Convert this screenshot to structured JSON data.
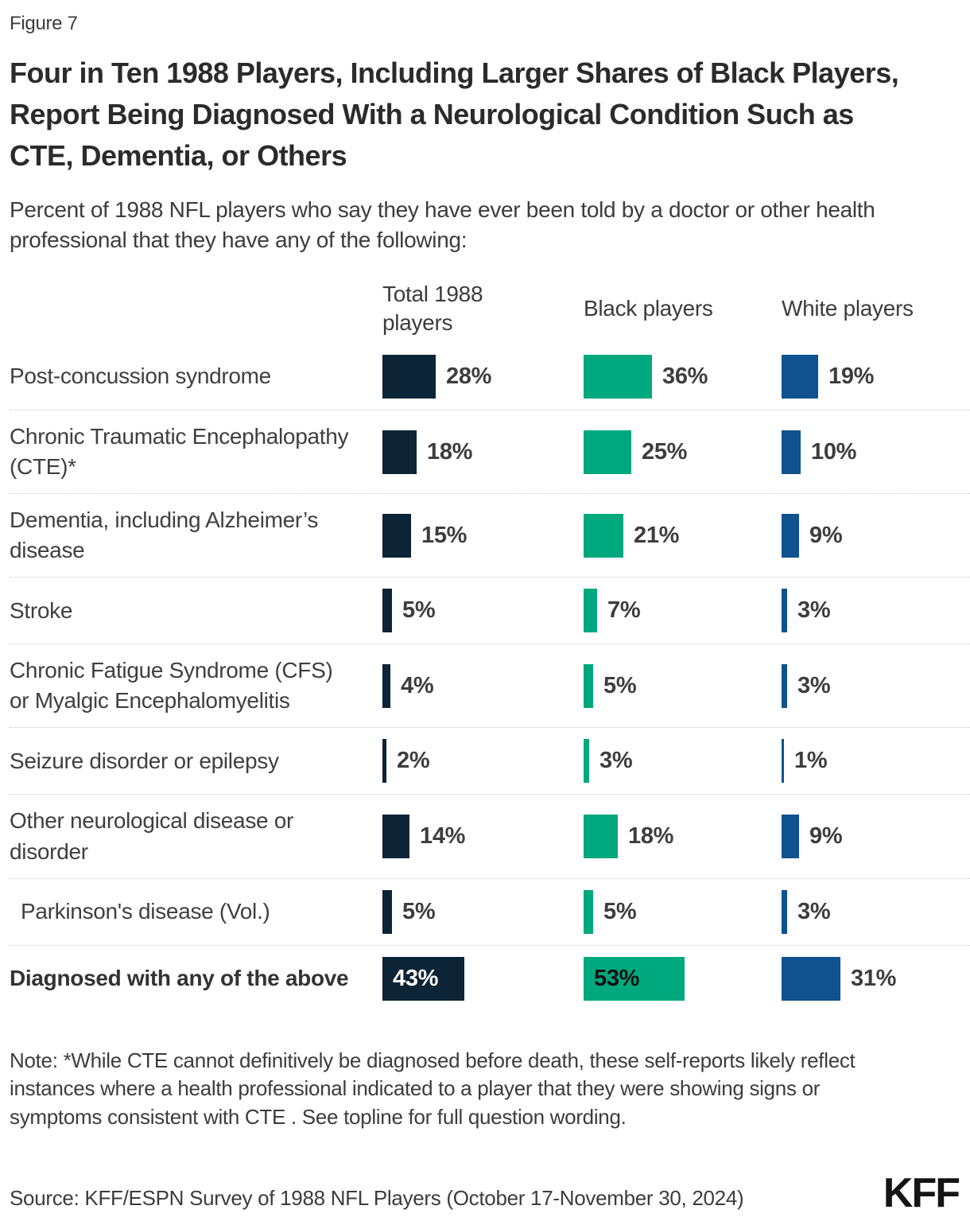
{
  "figure_label": "Figure 7",
  "title": "Four in Ten 1988 Players, Including Larger Shares of Black Players, Report Being Diagnosed With a Neurological Condition Such as CTE, Dementia, or Others",
  "subtitle": "Percent of 1988 NFL players who say they have ever been told by a doctor or other health professional that they have any of the following:",
  "columns": {
    "total": "Total 1988 players",
    "black": "Black players",
    "white": "White players"
  },
  "colors": {
    "total": "#0d2436",
    "black_players": "#00a87e",
    "white_players": "#0f528f"
  },
  "rows": [
    {
      "label": "Post-concussion syndrome",
      "total": 28,
      "black": 36,
      "white": 19,
      "total_label": "28%",
      "black_label": "36%",
      "white_label": "19%"
    },
    {
      "label": "Chronic Traumatic Encephalopathy (CTE)*",
      "total": 18,
      "black": 25,
      "white": 10,
      "total_label": "18%",
      "black_label": "25%",
      "white_label": "10%"
    },
    {
      "label": "Dementia, including Alzheimer’s disease",
      "total": 15,
      "black": 21,
      "white": 9,
      "total_label": "15%",
      "black_label": "21%",
      "white_label": "9%"
    },
    {
      "label": "Stroke",
      "total": 5,
      "black": 7,
      "white": 3,
      "total_label": "5%",
      "black_label": "7%",
      "white_label": "3%"
    },
    {
      "label": "Chronic Fatigue Syndrome (CFS) or Myalgic Encephalomyelitis",
      "total": 4,
      "black": 5,
      "white": 3,
      "total_label": "4%",
      "black_label": "5%",
      "white_label": "3%"
    },
    {
      "label": "Seizure disorder or epilepsy",
      "total": 2,
      "black": 3,
      "white": 1,
      "total_label": "2%",
      "black_label": "3%",
      "white_label": "1%"
    },
    {
      "label": "Other neurological disease or disorder",
      "total": 14,
      "black": 18,
      "white": 9,
      "total_label": "14%",
      "black_label": "18%",
      "white_label": "9%"
    },
    {
      "label": "Parkinson's disease (Vol.)",
      "total": 5,
      "black": 5,
      "white": 3,
      "total_label": "5%",
      "black_label": "5%",
      "white_label": "3%"
    },
    {
      "label": "Diagnosed with any of the above",
      "total": 43,
      "black": 53,
      "white": 31,
      "total_label": "43%",
      "black_label": "53%",
      "white_label": "31%"
    }
  ],
  "note": "Note: *While CTE cannot definitively be diagnosed before death, these self-reports likely reflect instances where a health professional indicated to a player that they were showing signs or symptoms consistent with CTE . See topline for full question wording.",
  "source": "Source: KFF/ESPN Survey of 1988 NFL Players (October 17-November 30, 2024)",
  "logo": "KFF",
  "chart_data": {
    "type": "bar",
    "orientation": "horizontal",
    "title": "Four in Ten 1988 Players, Including Larger Shares of Black Players, Report Being Diagnosed With a Neurological Condition Such as CTE, Dementia, or Others",
    "subtitle": "Percent of 1988 NFL players who say they have ever been told by a doctor or other health professional that they have any of the following:",
    "categories": [
      "Post-concussion syndrome",
      "Chronic Traumatic Encephalopathy (CTE)*",
      "Dementia, including Alzheimer’s disease",
      "Stroke",
      "Chronic Fatigue Syndrome (CFS) or Myalgic Encephalomyelitis",
      "Seizure disorder or epilepsy",
      "Other neurological disease or disorder",
      "Parkinson's disease (Vol.)",
      "Diagnosed with any of the above"
    ],
    "series": [
      {
        "name": "Total 1988 players",
        "color": "#0d2436",
        "values": [
          28,
          18,
          15,
          5,
          4,
          2,
          14,
          5,
          43
        ]
      },
      {
        "name": "Black players",
        "color": "#00a87e",
        "values": [
          36,
          25,
          21,
          7,
          5,
          3,
          18,
          5,
          53
        ]
      },
      {
        "name": "White players",
        "color": "#0f528f",
        "values": [
          19,
          10,
          9,
          3,
          3,
          1,
          9,
          3,
          31
        ]
      }
    ],
    "value_suffix": "%",
    "xlim": [
      0,
      100
    ],
    "grid": false,
    "legend_position": "column-headers-top",
    "unit": "percent"
  }
}
